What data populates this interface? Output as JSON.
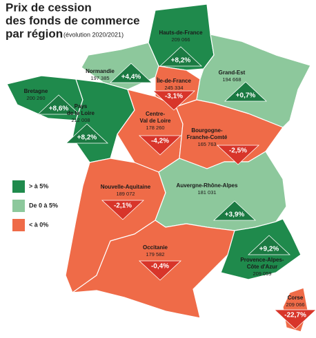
{
  "header": {
    "title_lines": [
      "Prix de cession",
      "des fonds de commerce",
      "par région"
    ],
    "subtitle": "(évolution 2020/2021)"
  },
  "legend": [
    {
      "label": "> à 5%",
      "color": "#1f8a4c"
    },
    {
      "label": "De 0 à 5%",
      "color": "#8dc89c"
    },
    {
      "label": "< à 0%",
      "color": "#ef6b48"
    }
  ],
  "regions": [
    {
      "name_lines": [
        "Hauts-de-France"
      ],
      "price": "209 066",
      "change": "+8,2%",
      "color": "#1f8a4c"
    },
    {
      "name_lines": [
        "Normandie"
      ],
      "price": "197 385",
      "change": "+4,4%",
      "color": "#8dc89c"
    },
    {
      "name_lines": [
        "Île-de-France"
      ],
      "price": "245 334",
      "change": "-3,1%",
      "color": "#ef6b48"
    },
    {
      "name_lines": [
        "Grand-Est"
      ],
      "price": "194 668",
      "change": "+0,7%",
      "color": "#8dc89c"
    },
    {
      "name_lines": [
        "Bretagne"
      ],
      "price": "200 260",
      "change": "+8,6%",
      "color": "#1f8a4c"
    },
    {
      "name_lines": [
        "Pays",
        "de la Loire"
      ],
      "price": "212 008",
      "change": "+8,2%",
      "color": "#1f8a4c"
    },
    {
      "name_lines": [
        "Centre-",
        "Val de Loire"
      ],
      "price": "178 260",
      "change": "-4,2%",
      "color": "#ef6b48"
    },
    {
      "name_lines": [
        "Bourgogne-",
        "Franche-Comté"
      ],
      "price": "165 763",
      "change": "-2,5%",
      "color": "#ef6b48"
    },
    {
      "name_lines": [
        "Nouvelle-Aquitaine"
      ],
      "price": "189 072",
      "change": "-2,1%",
      "color": "#ef6b48"
    },
    {
      "name_lines": [
        "Auvergne-Rhône-Alpes"
      ],
      "price": "181 031",
      "change": "+3,9%",
      "color": "#8dc89c"
    },
    {
      "name_lines": [
        "Occitanie"
      ],
      "price": "179 582",
      "change": "-0,4%",
      "color": "#ef6b48"
    },
    {
      "name_lines": [
        "Provence-Alpes-",
        "Côte d'Azur"
      ],
      "price": "209 059",
      "change": "+9,2%",
      "color": "#1f8a4c"
    },
    {
      "name_lines": [
        "Corse"
      ],
      "price": "209 066",
      "change": "-22,7%",
      "color": "#ef6b48"
    }
  ]
}
